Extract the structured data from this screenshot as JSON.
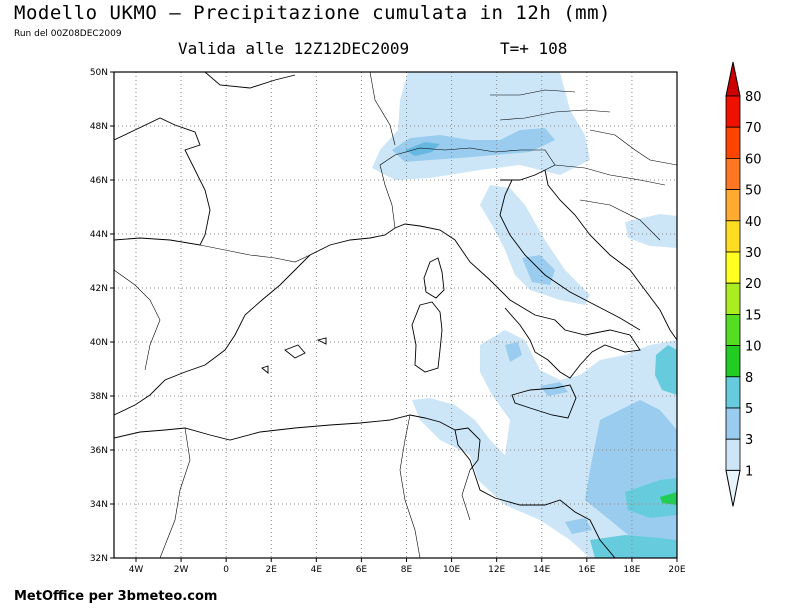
{
  "header": {
    "title": "Modello UKMO – Precipitazione cumulata in 12h (mm)",
    "run": "Run del 00Z08DEC2009",
    "valid": "Valida alle 12Z12DEC2009",
    "tplus": "T=+ 108"
  },
  "footer": {
    "credit": "MetOffice per 3bmeteo.com"
  },
  "map": {
    "lat_labels": [
      "50N",
      "48N",
      "46N",
      "44N",
      "42N",
      "40N",
      "38N",
      "36N",
      "34N",
      "32N"
    ],
    "lon_labels": [
      "4W",
      "2W",
      "0",
      "2E",
      "4E",
      "6E",
      "8E",
      "10E",
      "12E",
      "14E",
      "16E",
      "18E",
      "20E"
    ]
  },
  "legend": {
    "levels": [
      {
        "label": "80",
        "color": "#cc0000"
      },
      {
        "label": "70",
        "color": "#ee1100"
      },
      {
        "label": "60",
        "color": "#ff4400"
      },
      {
        "label": "50",
        "color": "#ff7722"
      },
      {
        "label": "40",
        "color": "#ffaa33"
      },
      {
        "label": "30",
        "color": "#ffdd22"
      },
      {
        "label": "20",
        "color": "#ffff22"
      },
      {
        "label": "15",
        "color": "#aaee22"
      },
      {
        "label": "10",
        "color": "#55dd22"
      },
      {
        "label": "8",
        "color": "#22cc22"
      },
      {
        "label": "5",
        "color": "#66ccdd"
      },
      {
        "label": "3",
        "color": "#99ccee"
      },
      {
        "label": "1",
        "color": "#cce6f8"
      }
    ],
    "bottom_color": "#e8f4fc"
  }
}
